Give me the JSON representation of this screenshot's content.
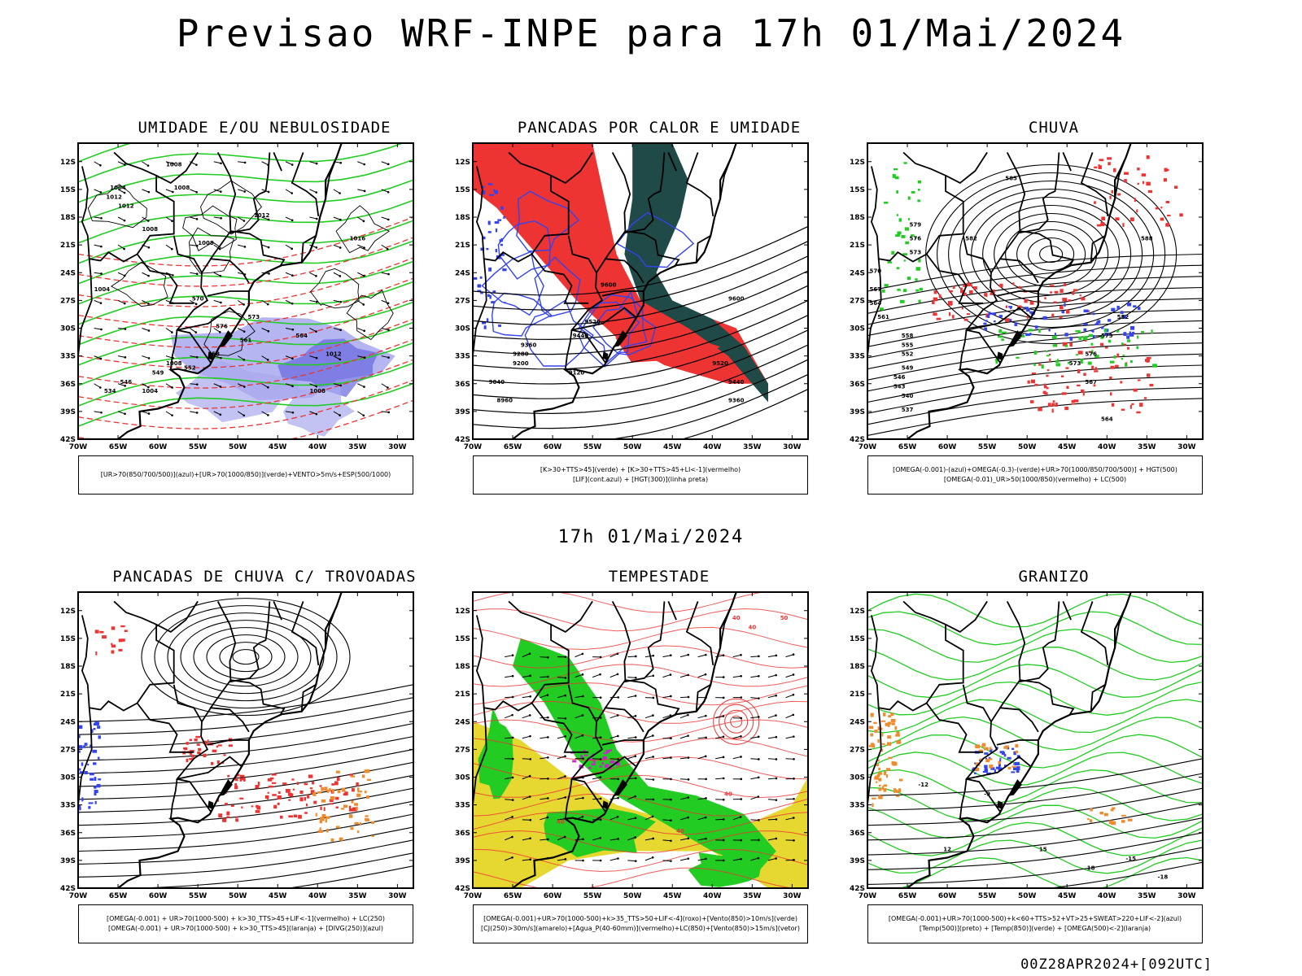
{
  "header": {
    "title": "Previsao WRF-INPE  para 17h 01/Mai/2024",
    "mid_title": "17h 01/Mai/2024",
    "run_tag": "00Z28APR2024+[092UTC]"
  },
  "axes": {
    "lat_labels": [
      "12S",
      "15S",
      "18S",
      "21S",
      "24S",
      "27S",
      "30S",
      "33S",
      "36S",
      "39S",
      "42S"
    ],
    "lon_labels": [
      "70W",
      "65W",
      "60W",
      "55W",
      "50W",
      "45W",
      "40W",
      "35W",
      "30W"
    ]
  },
  "colors": {
    "green": "#22cc22",
    "blue": "#3344ee",
    "red": "#ee3333",
    "dark_teal": "#1f4a48",
    "yellow": "#e6d830",
    "orange": "#f08a2a",
    "magenta": "#cc22cc",
    "lavender": "#a8a8ee"
  },
  "panels": [
    {
      "id": "umidade",
      "title": "UMIDADE E/OU NEBULOSIDADE",
      "legend": [
        "[UR>70(850/700/500)](azul)+[UR>70(1000/850)](verde)+VENTO>5m/s+ESP(500/1000)"
      ],
      "contour_labels": [
        "1008",
        "1004",
        "1012",
        "1008",
        "1008",
        "1012",
        "1016",
        "1012",
        "1008",
        "1004",
        "1012",
        "1008",
        "1008",
        "1004",
        "570",
        "576",
        "573",
        "564",
        "561",
        "558",
        "552",
        "549",
        "546",
        "534"
      ]
    },
    {
      "id": "pancadas-calor",
      "title": "PANCADAS POR CALOR E UMIDADE",
      "legend": [
        "[K>30+TTS>45](verde) + [K>30+TTS>45+LI<-1](vermelho)",
        "[LIF](cont.azul) + [HGT(300)](linha preta)"
      ],
      "contour_labels": [
        "9600",
        "9520",
        "9440",
        "9360",
        "9280",
        "9200",
        "9120",
        "9040",
        "8960",
        "9600",
        "9520",
        "9440",
        "9360"
      ]
    },
    {
      "id": "chuva",
      "title": "CHUVA",
      "legend": [
        "[OMEGA(-0.001)-(azul)+OMEGA(-0.3)-(verde)+UR>70(1000/850/700/500)] + HGT(500)",
        "[OMEGA(-0.01)_UR>50(1000/850)(vermelho) + LC(500)"
      ],
      "contour_labels": [
        "585",
        "588",
        "582",
        "579",
        "576",
        "573",
        "570",
        "567",
        "564",
        "561",
        "558",
        "555",
        "552",
        "549",
        "546",
        "543",
        "540",
        "537",
        "582",
        "579",
        "576",
        "573",
        "567",
        "564"
      ]
    },
    {
      "id": "pancadas-trovoadas",
      "title": "PANCADAS DE CHUVA C/ TROVOADAS",
      "legend": [
        "[OMEGA(-0.001) + UR>70(1000-500) + k>30_TTS>45+LIF<-1](vermelho) + LC(250)",
        "[OMEGA(-0.001) + UR>70(1000-500) + k>30_TTS>45](laranja) + [DIVG(250)](azul)"
      ],
      "contour_labels": []
    },
    {
      "id": "tempestade",
      "title": "TEMPESTADE",
      "legend": [
        "[OMEGA(-0.001)+UR>70(1000-500)+k>35_TTS>50+LIF<-4](roxo)+[Vento(850)>10m/s](verde)",
        "[CJ(250)>30m/s](amarelo)+[Agua_P(40-60mm)](vermelho)+LC(850)+[Vento(850)>15m/s](vetor)"
      ],
      "contour_labels": [
        "40",
        "40",
        "50",
        "40",
        "40",
        "40"
      ]
    },
    {
      "id": "granizo",
      "title": "GRANIZO",
      "legend": [
        "[OMEGA(-0.001)+UR>70(1000-500)+k<60+TTS>52+VT>25+SWEAT>220+LIF<-2](azul)",
        "[Temp(500)](preto) + [Temp(850)](verde) + [OMEGA(500)<-2](laranja)"
      ],
      "contour_labels": [
        "-15",
        "-12",
        "-9",
        "12",
        "15",
        "18",
        "-18"
      ]
    }
  ]
}
